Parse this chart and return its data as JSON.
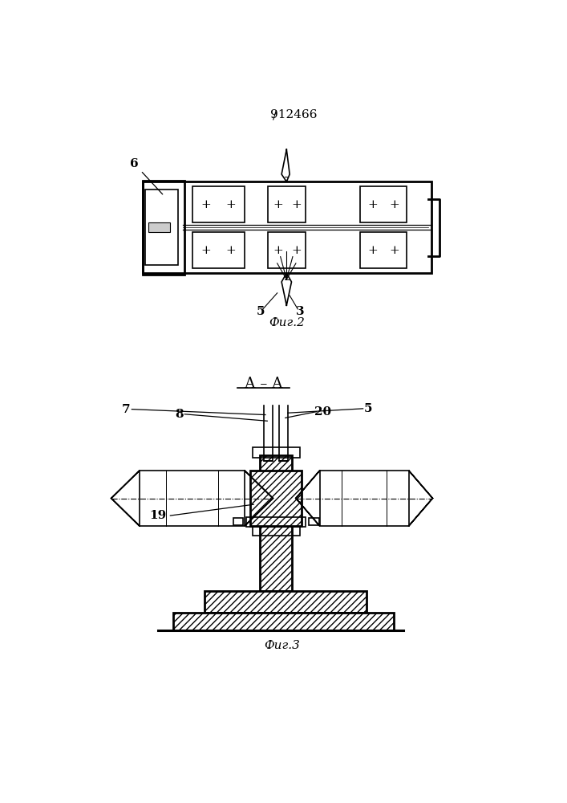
{
  "title": "912466",
  "bg_color": "#ffffff",
  "line_color": "#000000",
  "fig2_caption": "Фиг.2",
  "fig3_caption": "Фиг.3",
  "section_label": "А – А",
  "hatch_pattern": "////"
}
